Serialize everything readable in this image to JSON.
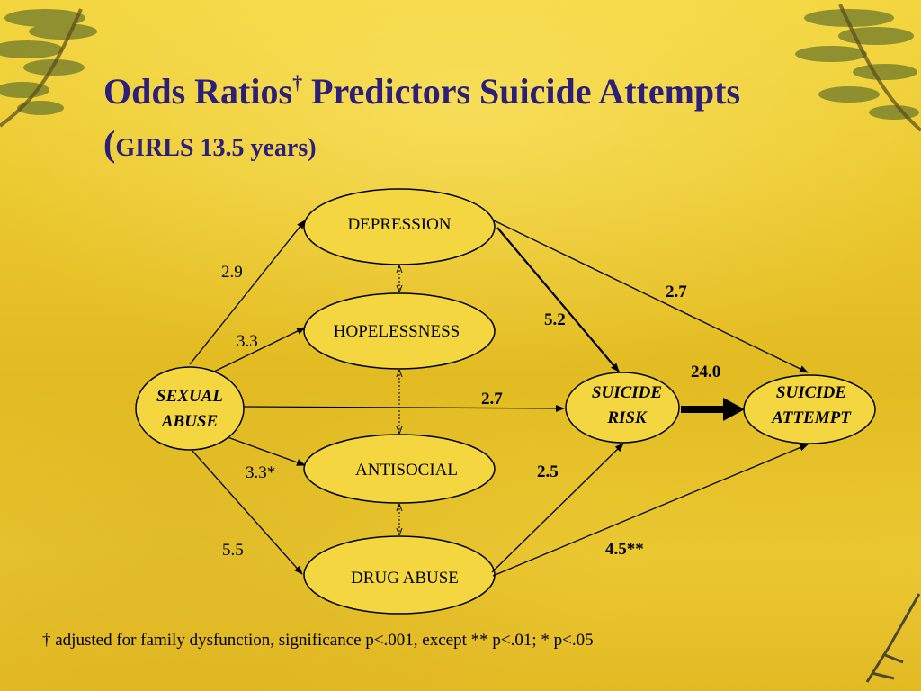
{
  "title": {
    "line1_text": "Odds Ratios",
    "line1_mark": "†",
    "line1_rest": " Predictors Suicide Attempts",
    "line2_open": "(",
    "line2_text": "GIRLS 13.5 years",
    "line2_close": ")"
  },
  "nodes": {
    "depression": "DEPRESSION",
    "hopelessness": "HOPELESSNESS",
    "antisocial": "ANTISOCIAL",
    "drug_abuse": "DRUG ABUSE",
    "sexual_abuse_1": "SEXUAL",
    "sexual_abuse_2": "ABUSE",
    "suicide_risk_1": "SUICIDE",
    "suicide_risk_2": "RISK",
    "suicide_attempt_1": "SUICIDE",
    "suicide_attempt_2": "ATTEMPT"
  },
  "edges": {
    "sexual_to_depression": "2.9",
    "sexual_to_hopelessness": "3.3",
    "sexual_to_antisocial": "3.3*",
    "sexual_to_drug": "5.5",
    "sexual_to_risk": "2.7",
    "depression_to_risk": "5.2",
    "depression_to_attempt": "2.7",
    "risk_to_attempt": "24.0",
    "drug_to_risk": "2.5",
    "drug_to_attempt": "4.5**"
  },
  "footnote": "† adjusted for family dysfunction, significance p<.001, except  ** p<.01;  * p<.05",
  "colors": {
    "title": "#2b1f7a",
    "ink": "#000000",
    "background": "#e9c52a",
    "node_fill": "#f4d740"
  }
}
